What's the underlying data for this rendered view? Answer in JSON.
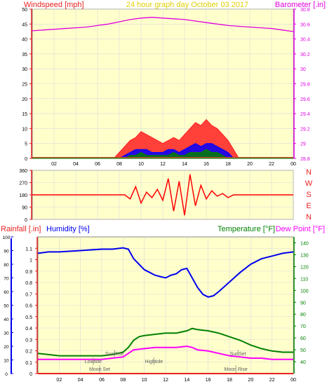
{
  "header": {
    "left_label": "Windspeed [mph]",
    "center_label": "24 hour graph day   October 03 2017",
    "right_label": "Barometer [.in]"
  },
  "colors": {
    "plot_bg": "#ffffcc",
    "grid": "#d9d9d9",
    "wind_axis": "#e8211f",
    "baro_axis": "#e000e0",
    "title": "#e0d000",
    "rain_axis": "#e8211f",
    "humidity": "#0000ee",
    "temperature": "#008000",
    "dewpoint": "#ff00ff",
    "axis_text": "#000000"
  },
  "chart_data": [
    {
      "type": "line",
      "id": "wind-baro",
      "title": "24 hour graph day   October 03 2017",
      "ylabel_left": "Windspeed [mph]",
      "ylabel_right": "Barometer [.in]",
      "ylim_left": [
        0,
        50
      ],
      "ylim_right": [
        28.8,
        30.8
      ],
      "yticks_left": [
        "0",
        "5",
        "10",
        "15",
        "20",
        "25",
        "30",
        "35",
        "40",
        "45",
        "50"
      ],
      "yticks_right": [
        "28.8",
        "29",
        "29.2",
        "29.4",
        "29.6",
        "29.8",
        "30",
        "30.2",
        "30.4",
        "30.6",
        "30.8"
      ],
      "x_ticks": [
        "02",
        "04",
        "06",
        "08",
        "10",
        "12",
        "14",
        "16",
        "18",
        "20",
        "22",
        "00"
      ],
      "xlim_hours": [
        0,
        24
      ],
      "grid": true,
      "series": [
        {
          "name": "Barometer",
          "axis": "right",
          "color": "#e000e0",
          "x": [
            0,
            1,
            2,
            3,
            4,
            5,
            6,
            7,
            8,
            9,
            10,
            11,
            12,
            13,
            14,
            15,
            16,
            17,
            18,
            19,
            20,
            21,
            22,
            23,
            24
          ],
          "y": [
            30.51,
            30.52,
            30.53,
            30.54,
            30.55,
            30.56,
            30.58,
            30.6,
            30.63,
            30.66,
            30.68,
            30.69,
            30.68,
            30.67,
            30.66,
            30.64,
            30.62,
            30.6,
            30.58,
            30.57,
            30.56,
            30.55,
            30.54,
            30.52,
            30.5
          ]
        },
        {
          "name": "Gust",
          "axis": "left",
          "color": "#ff2020",
          "x": [
            0,
            7.5,
            8,
            8.5,
            9,
            9.5,
            10,
            10.5,
            11,
            11.5,
            12,
            12.5,
            13,
            13.5,
            14,
            14.5,
            15,
            15.5,
            16,
            16.5,
            17,
            17.5,
            18,
            18.5,
            19,
            24
          ],
          "y": [
            0,
            0,
            2,
            4,
            6,
            7,
            9,
            8,
            7,
            6,
            5,
            6,
            7,
            6,
            8,
            10,
            12,
            11,
            13,
            11,
            10,
            8,
            6,
            3,
            0,
            0
          ]
        },
        {
          "name": "Average",
          "axis": "left",
          "color": "#0000ff",
          "x": [
            0,
            8,
            8.5,
            9,
            9.5,
            10,
            10.5,
            11,
            11.5,
            12,
            12.5,
            13,
            13.5,
            14,
            14.5,
            15,
            15.5,
            16,
            16.5,
            17,
            17.5,
            18,
            18.5,
            24
          ],
          "y": [
            0,
            0,
            1,
            2,
            3,
            3,
            3,
            2,
            2,
            2,
            3,
            3,
            2,
            3,
            4,
            5,
            4,
            5,
            5,
            4,
            3,
            2,
            0,
            0
          ]
        },
        {
          "name": "Speed",
          "axis": "left",
          "color": "#008000",
          "x": [
            0,
            8.5,
            9,
            9.5,
            10,
            10.5,
            11,
            11.5,
            12,
            12.5,
            13,
            13.5,
            14,
            14.5,
            15,
            15.5,
            16,
            16.5,
            17,
            17.5,
            18,
            24
          ],
          "y": [
            0,
            0,
            1,
            1,
            2,
            1,
            1,
            1,
            1,
            1,
            2,
            1,
            1,
            2,
            2,
            2,
            3,
            2,
            2,
            1,
            0,
            0
          ]
        }
      ]
    },
    {
      "type": "line",
      "id": "direction",
      "ylim": [
        0,
        360
      ],
      "yticks": [
        "0",
        "90",
        "180",
        "270",
        "360"
      ],
      "compass_labels": [
        "N",
        "W",
        "S",
        "E",
        "N"
      ],
      "xlim_hours": [
        0,
        24
      ],
      "grid": true,
      "series": [
        {
          "name": "Direction",
          "color": "#ff0000",
          "x": [
            0,
            8.5,
            9,
            9.5,
            10,
            10.5,
            11,
            11.5,
            12,
            12.5,
            13,
            13.5,
            14,
            14.5,
            15,
            15.5,
            16,
            16.5,
            17,
            17.5,
            18,
            18.5,
            24
          ],
          "y": [
            180,
            180,
            150,
            240,
            120,
            200,
            160,
            220,
            140,
            300,
            60,
            280,
            30,
            330,
            100,
            250,
            150,
            210,
            170,
            190,
            160,
            180,
            180
          ]
        }
      ]
    },
    {
      "type": "line",
      "id": "rain-humidity-temp",
      "header_labels": {
        "rainfall": "Rainfall [.in]",
        "humidity": "Humidity [%]",
        "temperature": "Temperature [°F]",
        "dewpoint": "Dew Point [°F]"
      },
      "ylim_rain": [
        0,
        1.2
      ],
      "yticks_rain": [
        "0",
        "0.1",
        "0.2",
        "0.3",
        "0.4",
        "0.5",
        "0.6",
        "0.7",
        "0.8",
        "0.9",
        "1",
        "1.1"
      ],
      "ylim_humidity": [
        0,
        100
      ],
      "yticks_humidity": [
        "0",
        "10",
        "20",
        "30",
        "40",
        "50",
        "60",
        "70",
        "80",
        "90",
        "100"
      ],
      "ylim_temp": [
        30,
        145
      ],
      "yticks_temp": [
        "40",
        "50",
        "60",
        "70",
        "80",
        "90",
        "100",
        "110",
        "120",
        "130",
        "140"
      ],
      "x_ticks": [
        "02",
        "04",
        "06",
        "08",
        "10",
        "12",
        "14",
        "16",
        "18",
        "20",
        "22",
        "00"
      ],
      "xlim_hours": [
        0,
        24
      ],
      "grid": true,
      "events": [
        {
          "label": "Lowtide",
          "hour": 5.2,
          "row": 1
        },
        {
          "label": "Moon Set",
          "hour": 5.8,
          "row": 0
        },
        {
          "label": "SunRise",
          "hour": 7.2,
          "row": 2
        },
        {
          "label": "Hightide",
          "hour": 10.9,
          "row": 1
        },
        {
          "label": "SunSet",
          "hour": 18.8,
          "row": 2
        },
        {
          "label": "Moon Rise",
          "hour": 18.6,
          "row": 0
        }
      ],
      "series": [
        {
          "name": "Humidity",
          "axis": "humidity",
          "color": "#0000ee",
          "x": [
            0,
            1,
            2,
            4,
            6,
            7,
            8,
            8.5,
            9,
            9.5,
            10,
            10.5,
            11,
            11.5,
            12,
            12.5,
            13,
            13.5,
            14,
            14.5,
            15,
            15.5,
            16,
            16.5,
            17,
            18,
            19,
            20,
            21,
            22,
            23,
            24
          ],
          "y": [
            88,
            89,
            89,
            90,
            91,
            91,
            92,
            91,
            84,
            80,
            76,
            74,
            72,
            71,
            70,
            72,
            73,
            76,
            77,
            70,
            63,
            58,
            56,
            57,
            60,
            67,
            74,
            80,
            84,
            86,
            88,
            89
          ]
        },
        {
          "name": "Temperature",
          "axis": "temp",
          "color": "#008000",
          "x": [
            0,
            1,
            2,
            4,
            6,
            7,
            8,
            8.5,
            9,
            9.5,
            10,
            11,
            12,
            13,
            14,
            14.5,
            15,
            16,
            17,
            18,
            19,
            20,
            21,
            22,
            23,
            24
          ],
          "y": [
            47,
            46,
            45,
            45,
            45,
            46,
            48,
            52,
            58,
            61,
            62,
            63,
            64,
            64,
            66,
            68,
            67,
            66,
            64,
            61,
            58,
            54,
            51,
            49,
            48,
            48
          ]
        },
        {
          "name": "Dew Point",
          "axis": "temp",
          "color": "#ff00ff",
          "x": [
            0,
            1,
            2,
            4,
            6,
            7,
            8,
            8.5,
            9,
            10,
            11,
            12,
            13,
            14,
            14.5,
            15,
            16,
            17,
            18,
            19,
            20,
            21,
            22,
            23,
            24
          ],
          "y": [
            42,
            42,
            42,
            42,
            42,
            43,
            44,
            47,
            50,
            51,
            52,
            52,
            52,
            53,
            52,
            50,
            49,
            47,
            45,
            44,
            43,
            43,
            42,
            42,
            42
          ]
        },
        {
          "name": "Rainfall",
          "axis": "rain",
          "color": "#e8211f",
          "x": [
            0,
            24
          ],
          "y": [
            0,
            0
          ]
        }
      ]
    }
  ]
}
